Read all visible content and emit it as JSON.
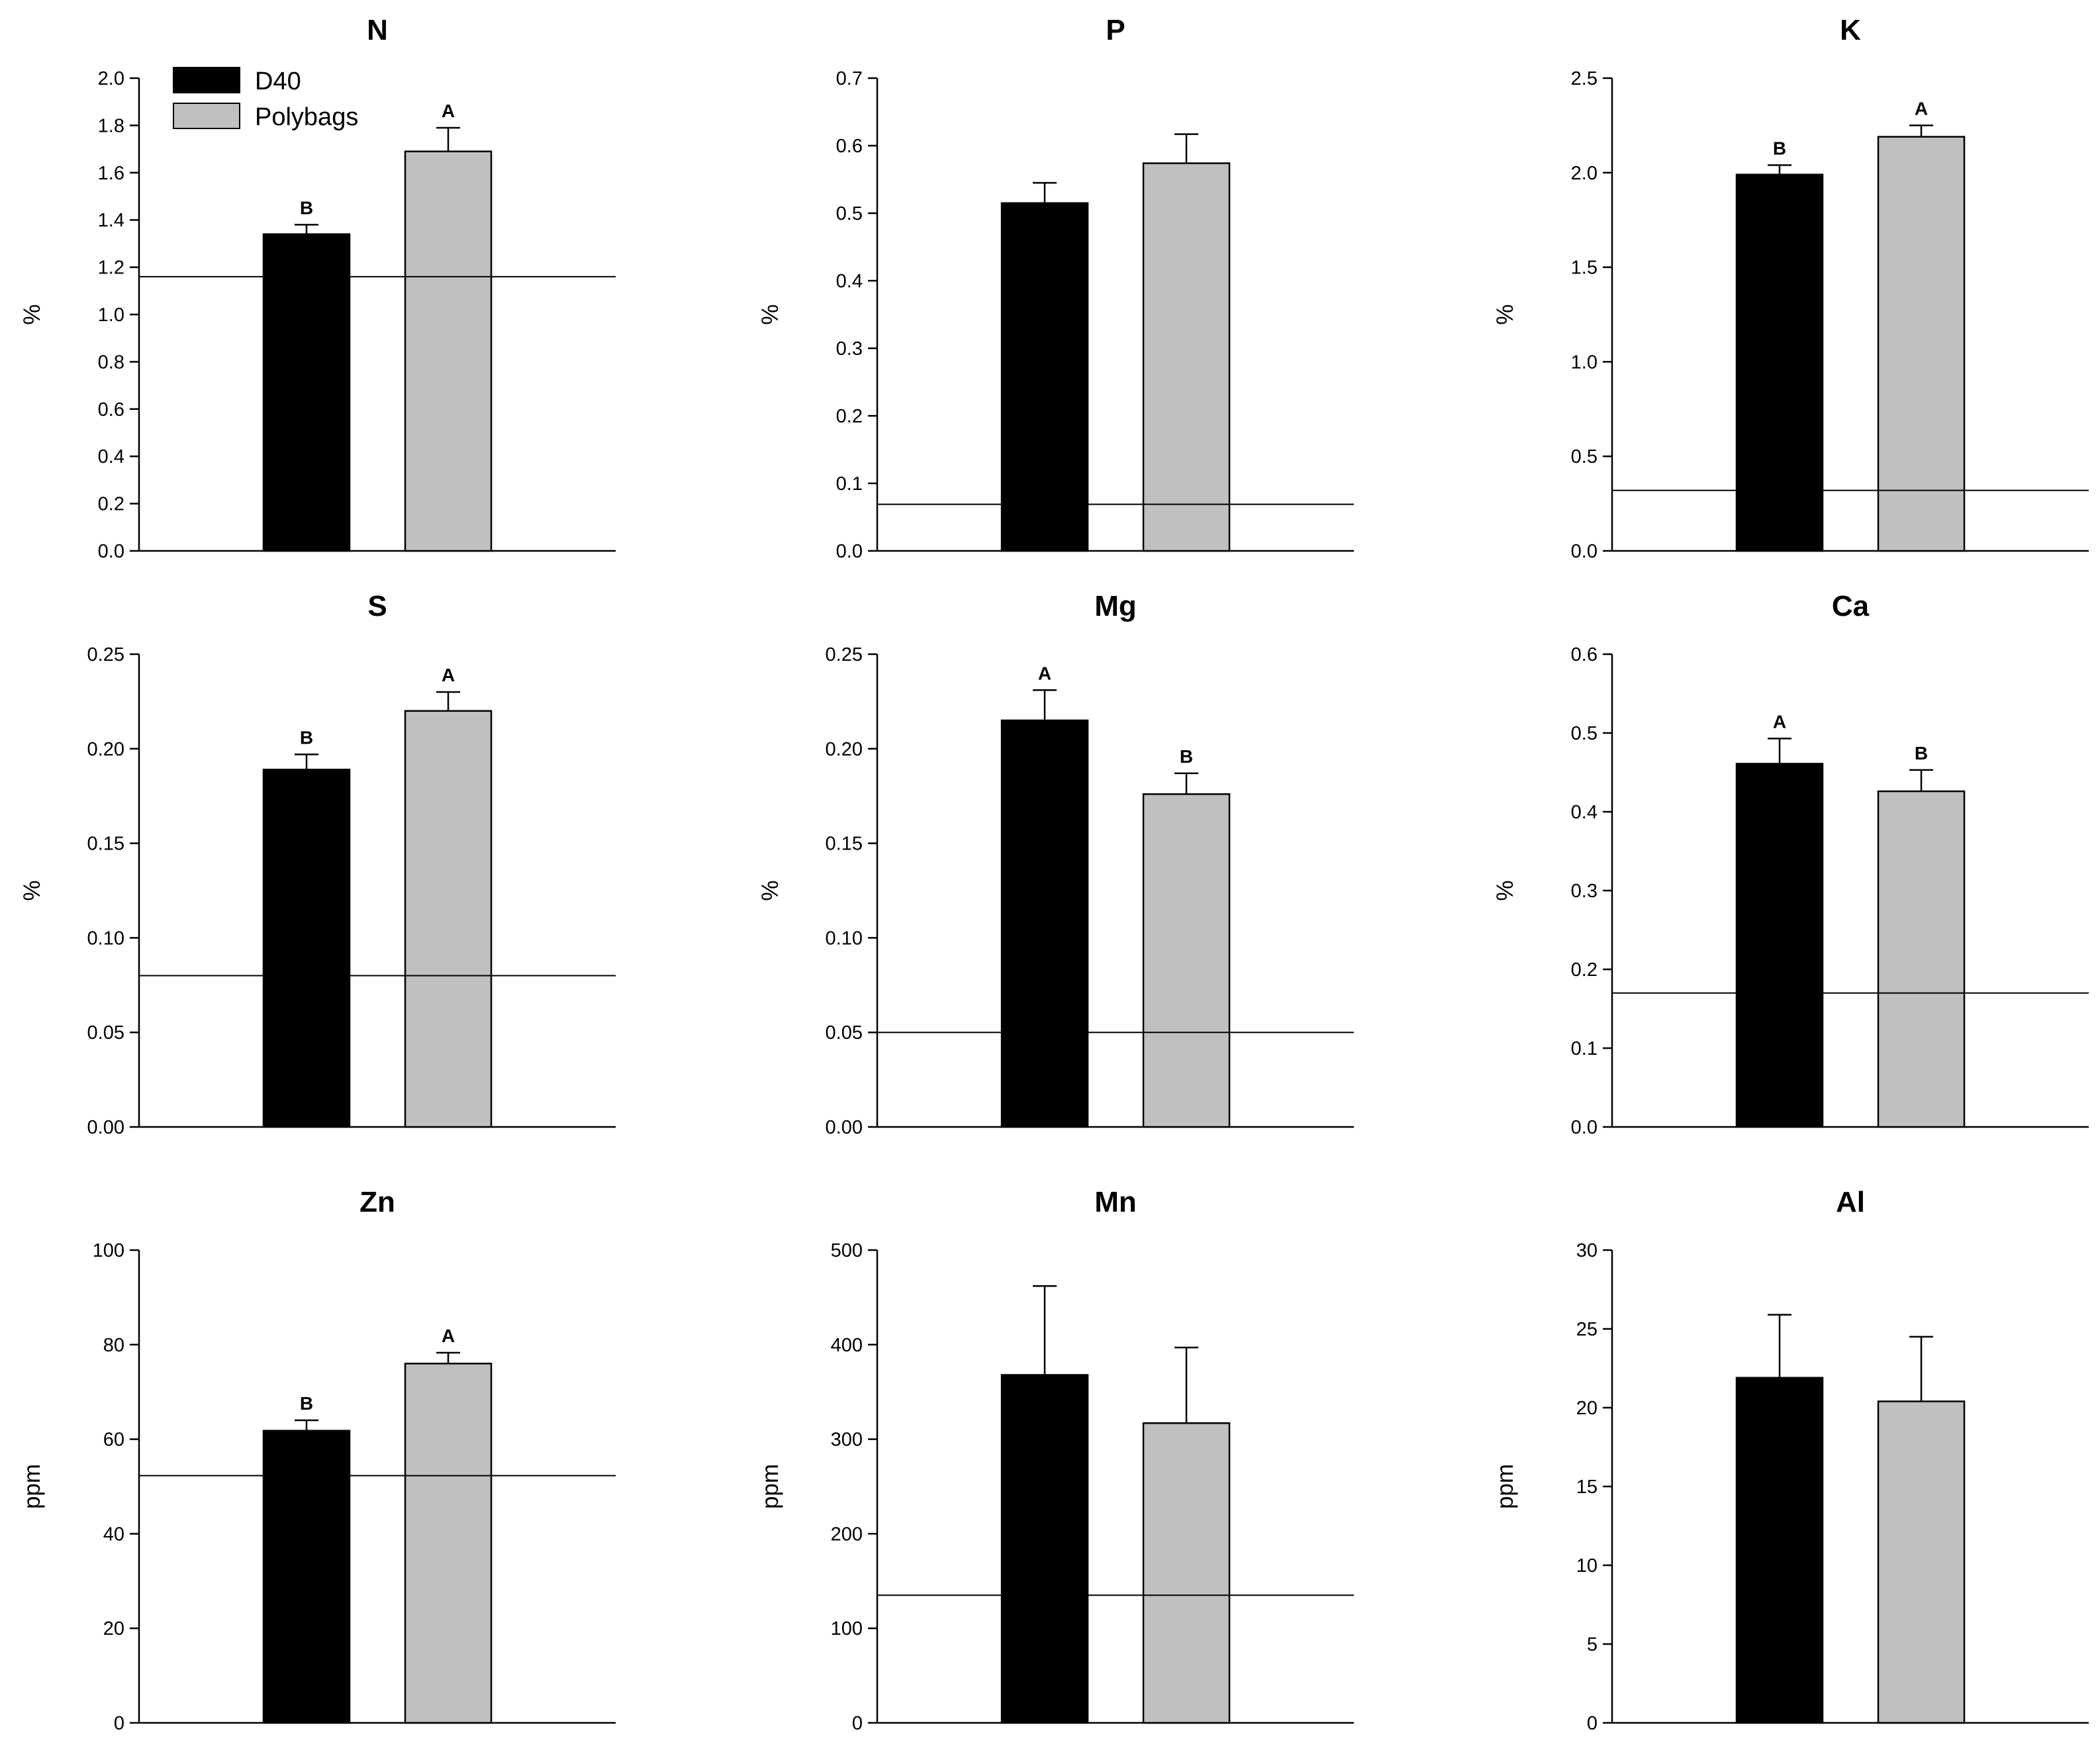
{
  "legend": {
    "entries": [
      {
        "label": "D40",
        "color": "#000000"
      },
      {
        "label": "Polybags",
        "color": "#c0c0c0"
      }
    ],
    "placement": "top-left"
  },
  "colors": {
    "d40": "#000000",
    "polybags": "#c0c0c0",
    "reference_line": "#000000"
  },
  "chart_data": [
    {
      "type": "bar",
      "title": "N",
      "ylabel": "%",
      "ylim": [
        0,
        2.0
      ],
      "yticks": [
        "0.0",
        "0.2",
        "0.4",
        "0.6",
        "0.8",
        "1.0",
        "1.2",
        "1.4",
        "1.6",
        "1.8",
        "2.0"
      ],
      "categories": [
        "D40",
        "Polybags"
      ],
      "values": [
        1.34,
        1.69
      ],
      "errors": [
        0.04,
        0.1
      ],
      "letters": [
        "B",
        "A"
      ],
      "reference_line": 1.16
    },
    {
      "type": "bar",
      "title": "P",
      "ylabel": "%",
      "ylim": [
        0,
        0.7
      ],
      "yticks": [
        "0.0",
        "0.1",
        "0.2",
        "0.3",
        "0.4",
        "0.5",
        "0.6",
        "0.7"
      ],
      "categories": [
        "D40",
        "Polybags"
      ],
      "values": [
        0.515,
        0.574
      ],
      "errors": [
        0.03,
        0.043
      ],
      "letters": [
        "",
        ""
      ],
      "reference_line": 0.069
    },
    {
      "type": "bar",
      "title": "K",
      "ylabel": "%",
      "ylim": [
        0,
        2.5
      ],
      "yticks": [
        "0.0",
        "0.5",
        "1.0",
        "1.5",
        "2.0",
        "2.5"
      ],
      "categories": [
        "D40",
        "Polybags"
      ],
      "values": [
        1.99,
        2.19
      ],
      "errors": [
        0.05,
        0.06
      ],
      "letters": [
        "B",
        "A"
      ],
      "reference_line": 0.32
    },
    {
      "type": "bar",
      "title": "S",
      "ylabel": "%",
      "ylim": [
        0,
        0.25
      ],
      "yticks": [
        "0.00",
        "0.05",
        "0.10",
        "0.15",
        "0.20",
        "0.25"
      ],
      "categories": [
        "D40",
        "Polybags"
      ],
      "values": [
        0.189,
        0.22
      ],
      "errors": [
        0.008,
        0.01
      ],
      "letters": [
        "B",
        "A"
      ],
      "reference_line": 0.08
    },
    {
      "type": "bar",
      "title": "Mg",
      "ylabel": "%",
      "ylim": [
        0,
        0.25
      ],
      "yticks": [
        "0.00",
        "0.05",
        "0.10",
        "0.15",
        "0.20",
        "0.25"
      ],
      "categories": [
        "D40",
        "Polybags"
      ],
      "values": [
        0.215,
        0.176
      ],
      "errors": [
        0.016,
        0.011
      ],
      "letters": [
        "A",
        "B"
      ],
      "reference_line": 0.05
    },
    {
      "type": "bar",
      "title": "Ca",
      "ylabel": "%",
      "ylim": [
        0,
        0.6
      ],
      "yticks": [
        "0.0",
        "0.1",
        "0.2",
        "0.3",
        "0.4",
        "0.5",
        "0.6"
      ],
      "categories": [
        "D40",
        "Polybags"
      ],
      "values": [
        0.461,
        0.426
      ],
      "errors": [
        0.032,
        0.027
      ],
      "letters": [
        "A",
        "B"
      ],
      "reference_line": 0.17
    },
    {
      "type": "bar",
      "title": "Zn",
      "ylabel": "ppm",
      "ylim": [
        0,
        100
      ],
      "yticks": [
        "0",
        "20",
        "40",
        "60",
        "80",
        "100"
      ],
      "categories": [
        "D40",
        "Polybags"
      ],
      "values": [
        61.8,
        76.0
      ],
      "errors": [
        2.2,
        2.3
      ],
      "letters": [
        "B",
        "A"
      ],
      "reference_line": 52.3
    },
    {
      "type": "bar",
      "title": "Mn",
      "ylabel": "ppm",
      "ylim": [
        0,
        500
      ],
      "yticks": [
        "0",
        "100",
        "200",
        "300",
        "400",
        "500"
      ],
      "categories": [
        "D40",
        "Polybags"
      ],
      "values": [
        368,
        317
      ],
      "errors": [
        94,
        80
      ],
      "letters": [
        "",
        ""
      ],
      "reference_line": 135
    },
    {
      "type": "bar",
      "title": "Al",
      "ylabel": "ppm",
      "ylim": [
        0,
        30
      ],
      "yticks": [
        "0",
        "5",
        "10",
        "15",
        "20",
        "25",
        "30"
      ],
      "categories": [
        "D40",
        "Polybags"
      ],
      "values": [
        21.9,
        20.4
      ],
      "errors": [
        4.0,
        4.1
      ],
      "letters": [
        "",
        ""
      ],
      "reference_line": null
    }
  ]
}
